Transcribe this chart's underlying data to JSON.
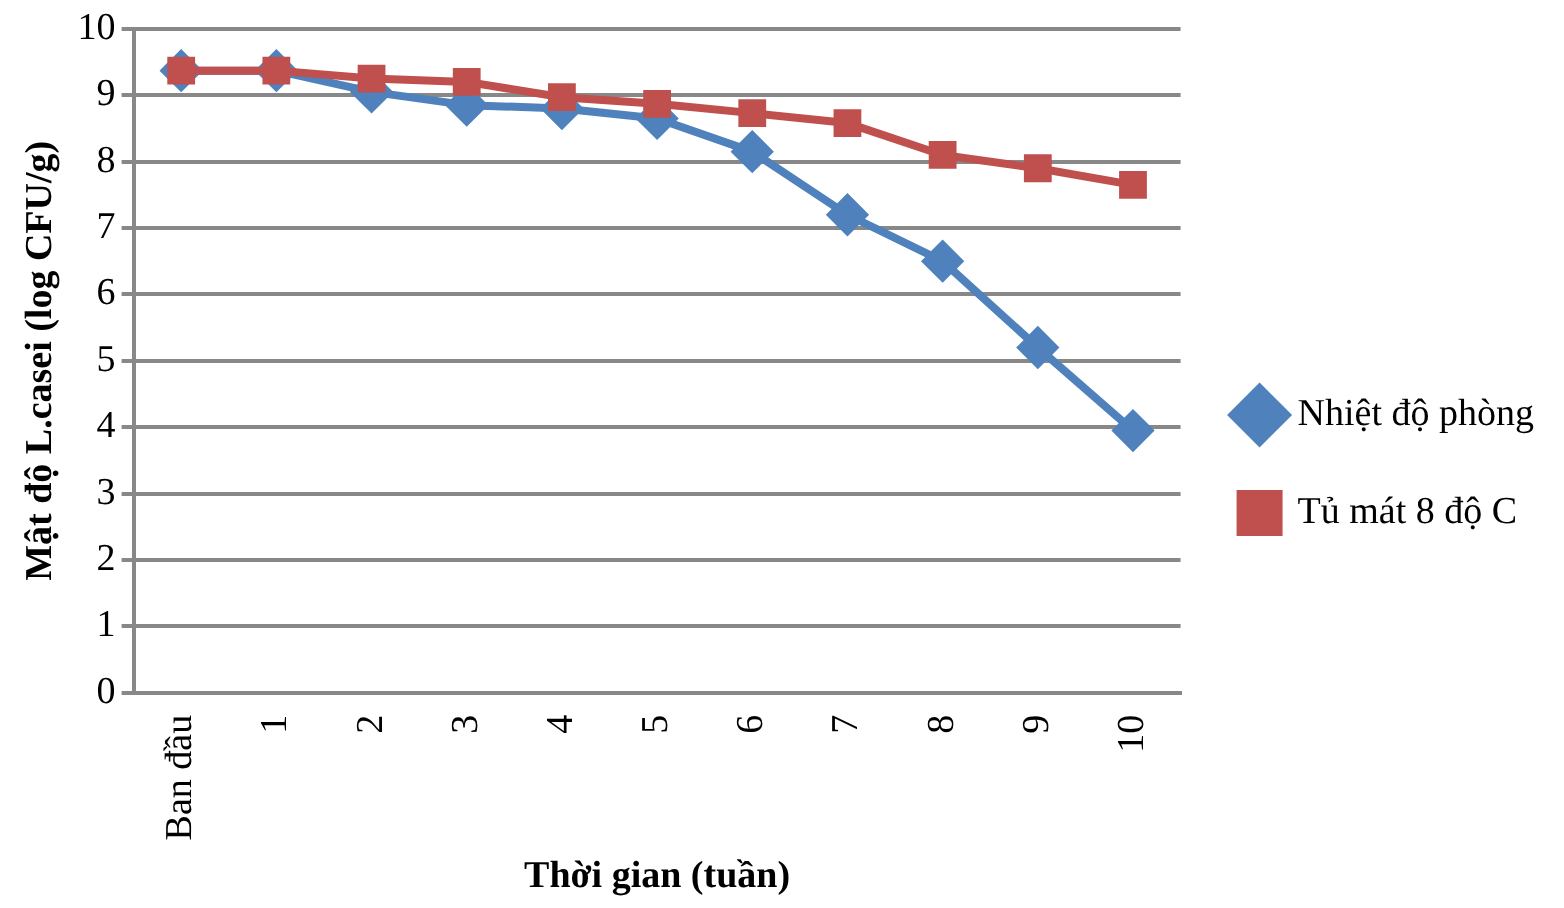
{
  "chart_data": {
    "type": "line",
    "xlabel": "Thời gian (tuần)",
    "ylabel": "Mật độ L.casei (log CFU/g)",
    "categories": [
      "Ban đầu",
      "1",
      "2",
      "3",
      "4",
      "5",
      "6",
      "7",
      "8",
      "9",
      "10"
    ],
    "series": [
      {
        "name": "Nhiệt độ phòng",
        "color": "#4f81bd",
        "marker": "diamond",
        "values": [
          9.37,
          9.37,
          9.05,
          8.85,
          8.8,
          8.65,
          8.15,
          7.2,
          6.5,
          5.2,
          3.95
        ]
      },
      {
        "name": "Tủ mát 8 độ C",
        "color": "#c0504d",
        "marker": "square",
        "values": [
          9.37,
          9.37,
          9.25,
          9.2,
          8.97,
          8.87,
          8.73,
          8.58,
          8.1,
          7.9,
          7.65
        ]
      }
    ],
    "ylim": [
      0,
      10
    ],
    "yticks": [
      0,
      1,
      2,
      3,
      4,
      5,
      6,
      7,
      8,
      9,
      10
    ],
    "grid": "y",
    "legend": "right",
    "line_style": "solid"
  }
}
